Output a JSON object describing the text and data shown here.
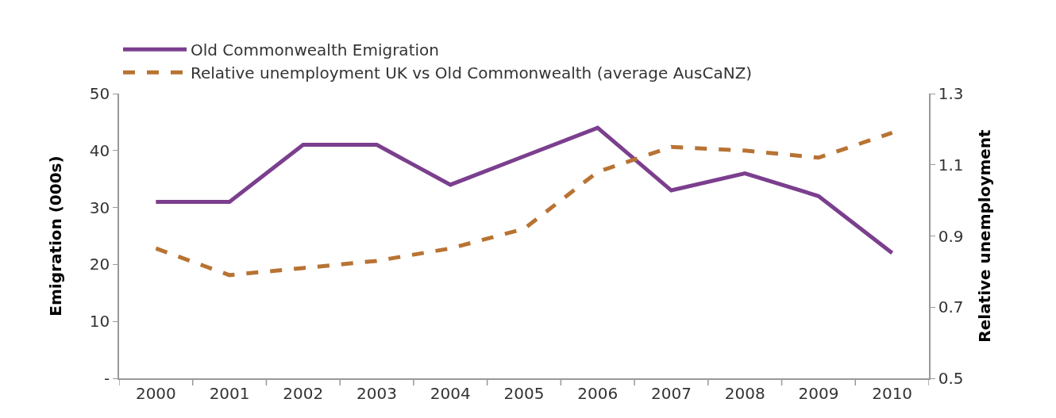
{
  "chart_data": {
    "type": "line",
    "categories": [
      "2000",
      "2001",
      "2002",
      "2003",
      "2004",
      "2005",
      "2006",
      "2007",
      "2008",
      "2009",
      "2010"
    ],
    "ylabel": "Emigration (000s)",
    "y2label": "Relative unemployment",
    "ylim": [
      0,
      50
    ],
    "yticks": [
      {
        "value": 0,
        "label": "-"
      },
      10,
      20,
      30,
      40,
      50
    ],
    "y2lim": [
      0.5,
      1.3
    ],
    "y2ticks": [
      0.5,
      0.7,
      0.9,
      1.1,
      1.3
    ],
    "grid": false,
    "legend": "top left",
    "marker": "none",
    "series": [
      {
        "name": "Old Commonwealth Emigration",
        "color": "#7b3f8e",
        "line_style": "solid",
        "values": [
          31,
          31,
          41,
          41,
          34,
          39,
          44,
          33,
          36,
          32,
          22
        ]
      },
      {
        "name": "Relative unemployment UK vs Old Commonwealth (average AusCaNZ)",
        "color": "#b87333",
        "line_style": "dashed",
        "axis": "y2",
        "values": [
          0.865,
          0.79,
          0.81,
          0.83,
          0.865,
          0.92,
          1.08,
          1.15,
          1.14,
          1.12,
          1.19
        ]
      }
    ]
  }
}
